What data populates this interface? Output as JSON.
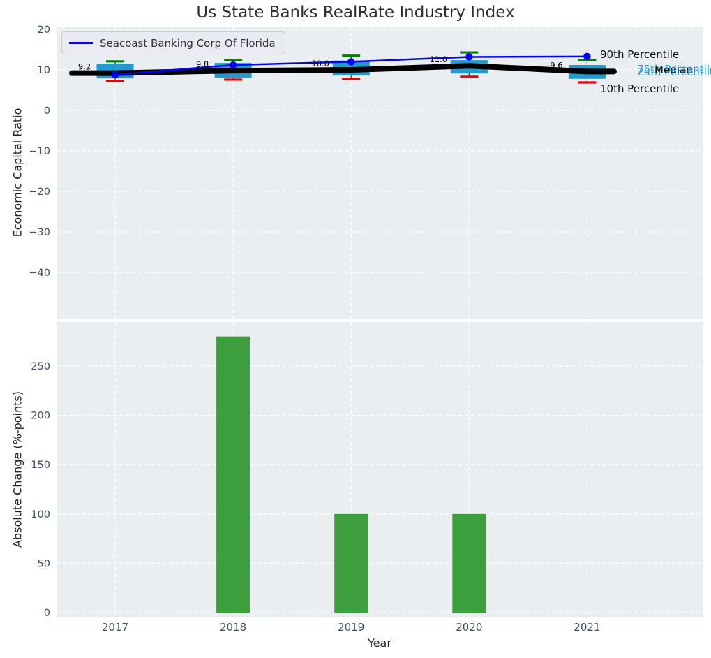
{
  "title": "Us State Banks RealRate Industry Index",
  "legend": {
    "label": "Seacoast Banking Corp Of Florida"
  },
  "axes": {
    "top": {
      "ylabel": "Economic Capital Ratio"
    },
    "bottom": {
      "ylabel": "Absolute Change (%-points)",
      "xlabel": "Year"
    }
  },
  "percentile_labels": {
    "p90": "90th Percentile",
    "p75": "75th Percentile",
    "median": "Median",
    "p25": "25th Percentile",
    "p10": "10th Percentile"
  },
  "colors": {
    "box_fill": "#1e9bd3",
    "whisker_line": "#3a3a3a",
    "cap_high_green": "#008000",
    "cap_low_red": "#e60000",
    "median_line": "#000000",
    "company_line": "#0000ff",
    "bar_fill": "#3c9e3c",
    "plot_bg": "#eaeef1",
    "grid": "#ffffff",
    "tick_text": "#3f4e63",
    "annotation_text": "#000000"
  },
  "chart_data": [
    {
      "type": "box",
      "title": "",
      "categories": [
        "2017",
        "2018",
        "2019",
        "2020",
        "2021"
      ],
      "ylabel": "Economic Capital Ratio",
      "ylim": [
        -51.5,
        20.7
      ],
      "yticks": [
        20,
        10,
        0,
        -10,
        -20,
        -30,
        -40
      ],
      "grid": true,
      "legend_position": "upper left",
      "boxes": {
        "p90": [
          12.1,
          12.4,
          13.5,
          14.3,
          12.4
        ],
        "q3": [
          11.4,
          11.7,
          12.3,
          12.4,
          11.2
        ],
        "median": [
          9.2,
          9.8,
          10.0,
          11.0,
          9.6
        ],
        "q1": [
          7.9,
          8.1,
          8.6,
          9.1,
          7.8
        ],
        "p10": [
          7.3,
          7.6,
          7.8,
          8.3,
          6.9
        ]
      },
      "median_labels": [
        "9.2",
        "9.8",
        "10.0",
        "11.0",
        "9.6"
      ],
      "series": [
        {
          "name": "Seacoast Banking Corp Of Florida",
          "values": [
            8.8,
            11.2,
            12.0,
            13.2,
            13.3
          ]
        }
      ]
    },
    {
      "type": "bar",
      "title": "",
      "categories": [
        "2017",
        "2018",
        "2019",
        "2020",
        "2021"
      ],
      "values": [
        0,
        280,
        100,
        100,
        0
      ],
      "ylabel": "Absolute Change (%-points)",
      "xlabel": "Year",
      "ylim": [
        0,
        295
      ],
      "yticks": [
        0,
        50,
        100,
        150,
        200,
        250
      ],
      "grid": true
    }
  ]
}
